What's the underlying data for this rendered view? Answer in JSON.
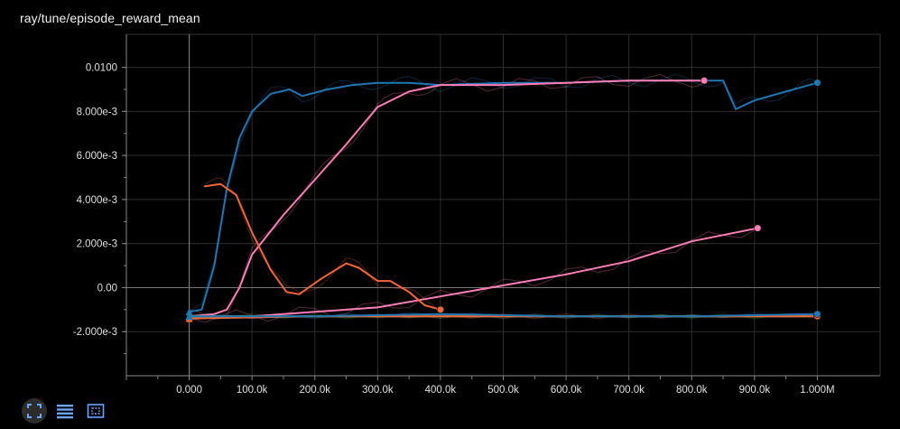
{
  "header": {
    "title": "ray/tune/episode_reward_mean"
  },
  "toolbar": {
    "buttons": [
      {
        "name": "fullscreen-icon"
      },
      {
        "name": "data-table-icon"
      },
      {
        "name": "fit-domain-icon"
      }
    ]
  },
  "colors": {
    "background": "#000000",
    "grid": "#333333",
    "axis": "#888888"
  },
  "chart_data": {
    "type": "line",
    "title": "ray/tune/episode_reward_mean",
    "xlabel": "",
    "ylabel": "",
    "x_tick_labels": [
      "0.000",
      "100.0k",
      "200.0k",
      "300.0k",
      "400.0k",
      "500.0k",
      "600.0k",
      "700.0k",
      "800.0k",
      "900.0k",
      "1.000M"
    ],
    "y_tick_labels": [
      "-2.000e-3",
      "0.00",
      "2.000e-3",
      "4.000e-3",
      "6.000e-3",
      "8.000e-3",
      "0.0100"
    ],
    "xlim": [
      -100000,
      1100000
    ],
    "ylim": [
      -0.004,
      0.0115
    ],
    "grid": true,
    "series": [
      {
        "color": "#1f77b4",
        "x": [
          0,
          20000,
          40000,
          60000,
          80000,
          100000,
          130000,
          160000,
          180000,
          220000,
          260000,
          300000,
          350000,
          400000,
          500000,
          600000,
          700000,
          800000,
          850000,
          870000,
          900000,
          950000,
          1000000
        ],
        "y": [
          -0.0011,
          -0.001,
          0.001,
          0.0045,
          0.0068,
          0.008,
          0.0088,
          0.009,
          0.0087,
          0.009,
          0.0092,
          0.0093,
          0.0093,
          0.0092,
          0.0093,
          0.0093,
          0.0094,
          0.0094,
          0.0094,
          0.0081,
          0.0085,
          0.0089,
          0.0093
        ]
      },
      {
        "color": "#ff7eb6",
        "x": [
          0,
          40000,
          60000,
          80000,
          100000,
          150000,
          200000,
          250000,
          300000,
          350000,
          400000,
          500000,
          600000,
          700000,
          800000,
          820000
        ],
        "y": [
          -0.0013,
          -0.0012,
          -0.001,
          0.0,
          0.0015,
          0.0033,
          0.0049,
          0.0065,
          0.0082,
          0.0089,
          0.0092,
          0.0092,
          0.0093,
          0.0094,
          0.0094,
          0.0094
        ]
      },
      {
        "color": "#ff7eb6",
        "x": [
          0,
          100000,
          200000,
          300000,
          400000,
          500000,
          600000,
          700000,
          800000,
          905000
        ],
        "y": [
          -0.0013,
          -0.0013,
          -0.0011,
          -0.0009,
          -0.0004,
          0.0001,
          0.0006,
          0.0012,
          0.0021,
          0.0027
        ]
      },
      {
        "color": "#f2663a",
        "x": [
          25000,
          50000,
          75000,
          100000,
          130000,
          155000,
          175000,
          210000,
          250000,
          270000,
          300000,
          320000,
          350000,
          375000,
          400000
        ],
        "y": [
          0.0046,
          0.0047,
          0.0042,
          0.0025,
          0.0008,
          -0.0002,
          -0.0003,
          0.0004,
          0.0011,
          0.0009,
          0.0003,
          0.0003,
          -0.0002,
          -0.0008,
          -0.001
        ]
      },
      {
        "color": "#888888",
        "x": [
          0,
          200000,
          400000,
          600000,
          800000,
          1000000
        ],
        "y": [
          -0.0013,
          -0.0013,
          -0.0013,
          -0.0013,
          -0.0013,
          -0.0013
        ]
      },
      {
        "color": "#2ca02c",
        "x": [
          0,
          200000,
          400000,
          600000,
          800000,
          1000000
        ],
        "y": [
          -0.0013,
          -0.0013,
          -0.0013,
          -0.0013,
          -0.0013,
          -0.0013
        ]
      },
      {
        "color": "#f2663a",
        "x": [
          0,
          200000,
          400000,
          600000,
          800000,
          1000000
        ],
        "y": [
          -0.0014,
          -0.0013,
          -0.0013,
          -0.0013,
          -0.0013,
          -0.0013
        ]
      },
      {
        "color": "#1f77b4",
        "x": [
          0,
          200000,
          400000,
          600000,
          800000,
          1000000
        ],
        "y": [
          -0.0013,
          -0.0013,
          -0.0012,
          -0.0013,
          -0.0013,
          -0.0012
        ]
      }
    ]
  }
}
